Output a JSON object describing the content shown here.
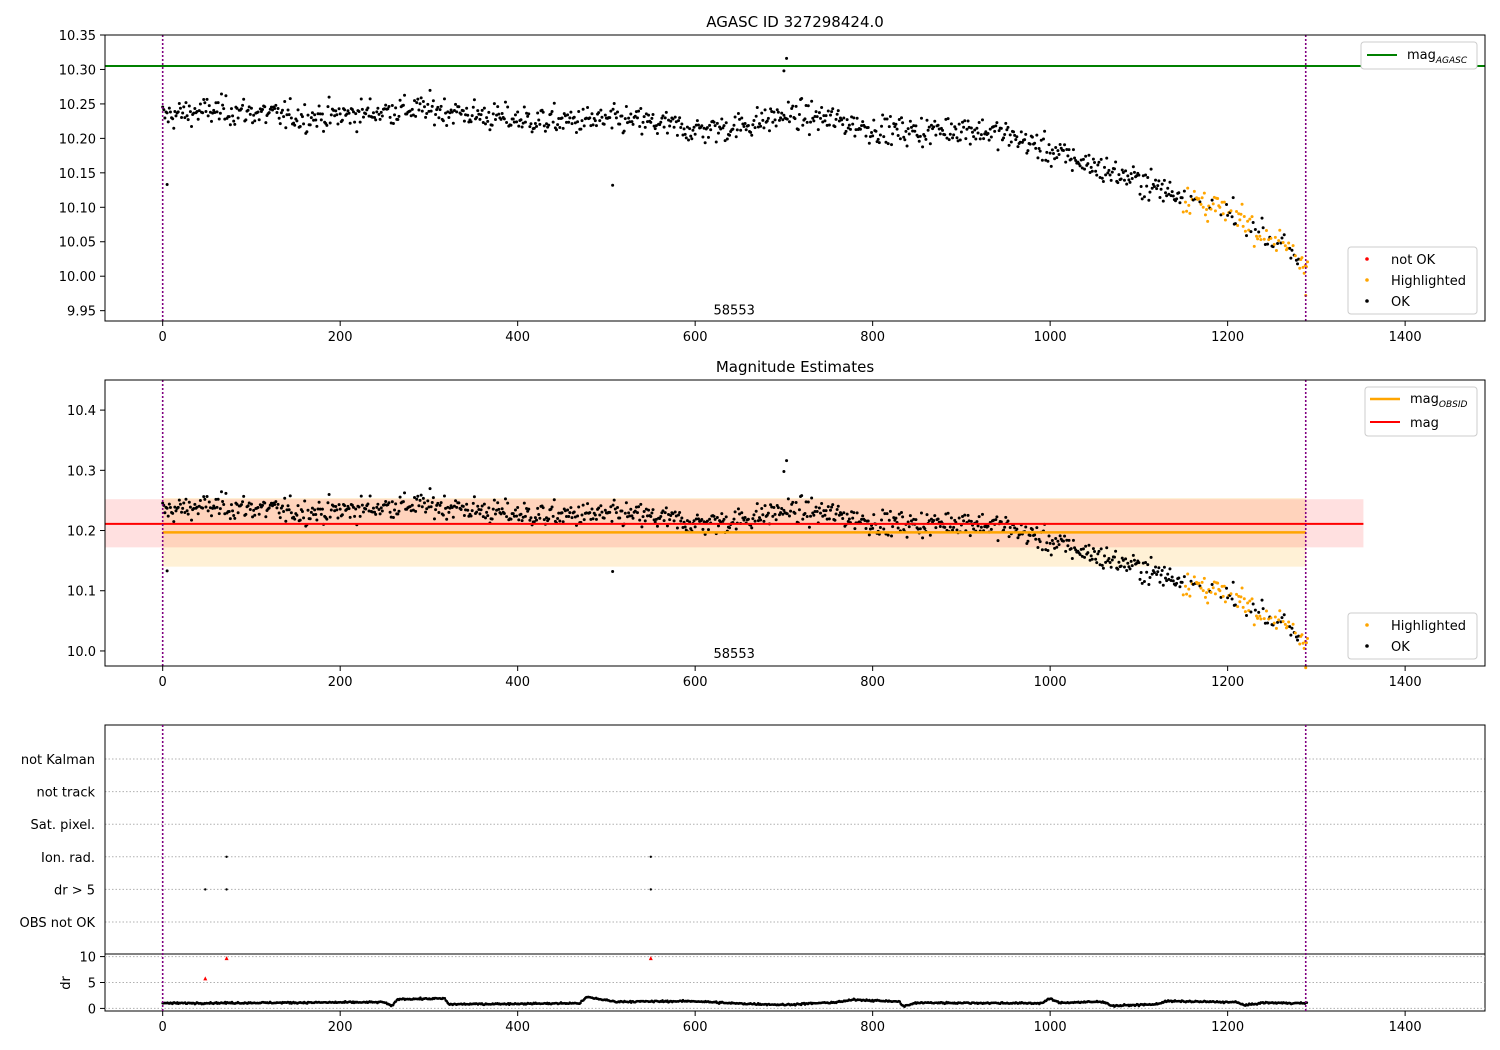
{
  "chart_data": [
    {
      "type": "scatter",
      "title": "AGASC ID 327298424.0",
      "xlim": [
        -65,
        1490
      ],
      "ylim": [
        9.935,
        10.35
      ],
      "x_ticks": [
        0,
        200,
        400,
        600,
        800,
        1000,
        1200,
        1400
      ],
      "x_tick_labels": [
        "0",
        "200",
        "400",
        "600",
        "800",
        "1000",
        "1200",
        "1400"
      ],
      "y_ticks": [
        9.95,
        10.0,
        10.05,
        10.1,
        10.15,
        10.2,
        10.25,
        10.3,
        10.35
      ],
      "y_tick_labels": [
        "9.95",
        "10.00",
        "10.05",
        "10.10",
        "10.15",
        "10.20",
        "10.25",
        "10.30",
        "10.35"
      ],
      "vlines": [
        0,
        1288
      ],
      "mag_agasc": 10.305,
      "annotation": {
        "text": "58553",
        "x": 644,
        "y": 9.95
      },
      "legend_line": {
        "label": "mag",
        "sub": "AGASC"
      },
      "legend_points": [
        {
          "label": "not OK",
          "color": "#ff0000"
        },
        {
          "label": "Highlighted",
          "color": "#ffa500"
        },
        {
          "label": "OK",
          "color": "#000000"
        }
      ],
      "trend": [
        [
          0,
          10.232
        ],
        [
          200,
          10.238
        ],
        [
          400,
          10.234
        ],
        [
          500,
          10.221
        ],
        [
          600,
          10.215
        ],
        [
          700,
          10.233
        ],
        [
          800,
          10.211
        ],
        [
          900,
          10.22
        ],
        [
          950,
          10.202
        ],
        [
          1000,
          10.175
        ],
        [
          1050,
          10.16
        ],
        [
          1100,
          10.145
        ],
        [
          1150,
          10.118
        ],
        [
          1200,
          10.085
        ],
        [
          1250,
          10.05
        ],
        [
          1288,
          10.02
        ]
      ],
      "highlight_start": 1150,
      "series_end": 1290
    },
    {
      "type": "scatter",
      "title": "Magnitude Estimates",
      "xlim": [
        -65,
        1490
      ],
      "ylim": [
        9.975,
        10.45
      ],
      "x_ticks": [
        0,
        200,
        400,
        600,
        800,
        1000,
        1200,
        1400
      ],
      "x_tick_labels": [
        "0",
        "200",
        "400",
        "600",
        "800",
        "1000",
        "1200",
        "1400"
      ],
      "y_ticks": [
        10.0,
        10.1,
        10.2,
        10.3,
        10.4
      ],
      "y_tick_labels": [
        "10.0",
        "10.1",
        "10.2",
        "10.3",
        "10.4"
      ],
      "vlines": [
        0,
        1288
      ],
      "mag_obsid": {
        "value": 10.197,
        "band": [
          10.14,
          10.254
        ],
        "x_range": [
          0,
          1288
        ],
        "color": "#ffa500"
      },
      "mag": {
        "value": 10.211,
        "band": [
          10.172,
          10.252
        ],
        "x_range": [
          -65,
          1353
        ],
        "color": "#ff0000"
      },
      "annotation": {
        "text": "58553",
        "x": 644,
        "y": 9.995
      },
      "legend_lines": [
        {
          "label": "mag",
          "sub": "OBSID",
          "color": "#ffa500"
        },
        {
          "label": "mag",
          "sub": "",
          "color": "#ff0000"
        }
      ],
      "legend_points": [
        {
          "label": "Highlighted",
          "color": "#ffa500"
        },
        {
          "label": "OK",
          "color": "#000000"
        }
      ]
    },
    {
      "type": "scatter",
      "xlim": [
        -65,
        1490
      ],
      "x_ticks": [
        0,
        200,
        400,
        600,
        800,
        1000,
        1200,
        1400
      ],
      "x_tick_labels": [
        "0",
        "200",
        "400",
        "600",
        "800",
        "1000",
        "1200",
        "1400"
      ],
      "vlines": [
        0,
        1288
      ],
      "flag_rows": [
        "not Kalman",
        "not track",
        "Sat. pixel.",
        "Ion. rad.",
        "dr > 5",
        "OBS not OK"
      ],
      "flag_points": [
        {
          "row": "Ion. rad.",
          "x": 72
        },
        {
          "row": "Ion. rad.",
          "x": 550
        },
        {
          "row": "dr > 5",
          "x": 48
        },
        {
          "row": "dr > 5",
          "x": 72
        },
        {
          "row": "dr > 5",
          "x": 550
        }
      ],
      "dr": {
        "ylabel": "dr",
        "ylim": [
          -0.5,
          10.5
        ],
        "y_ticks": [
          0,
          5,
          10
        ],
        "y_tick_labels": [
          "0",
          "5",
          "10"
        ],
        "red_points": [
          [
            48,
            5.8
          ],
          [
            72,
            9.7
          ],
          [
            550,
            9.7
          ]
        ],
        "baseline": [
          [
            0,
            1.0
          ],
          [
            250,
            1.2
          ],
          [
            258,
            0.4
          ],
          [
            265,
            1.8
          ],
          [
            318,
            1.9
          ],
          [
            322,
            0.8
          ],
          [
            470,
            1.0
          ],
          [
            478,
            2.2
          ],
          [
            510,
            1.3
          ],
          [
            600,
            1.4
          ],
          [
            640,
            1.0
          ],
          [
            700,
            0.7
          ],
          [
            760,
            1.2
          ],
          [
            780,
            1.7
          ],
          [
            830,
            1.3
          ],
          [
            835,
            0.4
          ],
          [
            850,
            1.1
          ],
          [
            990,
            1.0
          ],
          [
            1000,
            1.9
          ],
          [
            1010,
            1.1
          ],
          [
            1060,
            1.3
          ],
          [
            1070,
            0.5
          ],
          [
            1120,
            0.8
          ],
          [
            1130,
            1.4
          ],
          [
            1210,
            1.2
          ],
          [
            1220,
            0.6
          ],
          [
            1240,
            1.1
          ],
          [
            1288,
            1.0
          ]
        ]
      }
    }
  ]
}
